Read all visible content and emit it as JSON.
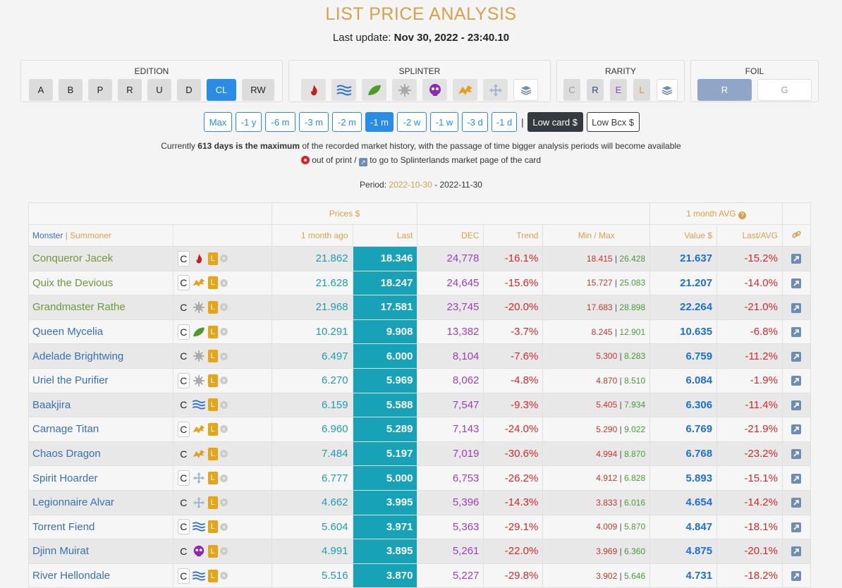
{
  "header": {
    "title": "LIST PRICE ANALYSIS",
    "update_label": "Last update:",
    "update_value": "Nov 30, 2022 - 23:40.10"
  },
  "filters": {
    "edition": {
      "label": "EDITION",
      "options": [
        "A",
        "B",
        "P",
        "R",
        "U",
        "D",
        "CL",
        "RW"
      ],
      "active": "CL"
    },
    "splinter": {
      "label": "SPLINTER",
      "icons": [
        "fire-icon",
        "water-icon",
        "earth-icon",
        "life-icon",
        "death-icon",
        "dragon-icon",
        "neutral-icon",
        "all-icon"
      ]
    },
    "rarity": {
      "label": "RARITY",
      "options": [
        "C",
        "R",
        "E",
        "L"
      ]
    },
    "foil": {
      "label": "FOIL",
      "options": [
        "R",
        "G"
      ],
      "active": "R"
    }
  },
  "periods": {
    "options": [
      "Max",
      "-1 y",
      "-6 m",
      "-3 m",
      "-2 m",
      "-1 m",
      "-2 w",
      "-1 w",
      "-3 d",
      "-1 d"
    ],
    "active": "-1 m",
    "low_card": "Low card $",
    "low_bcx": "Low Bcx $"
  },
  "info": {
    "line1_pre": "Currently ",
    "line1_bold": "613 days is the maximum",
    "line1_post": " of the recorded market history, with the passage of time bigger analysis periods will become available",
    "line2_a": " out of print / ",
    "line2_b": " to go to Splinterlands market page of the card",
    "period_label": "Period: ",
    "period_from": "2022-10-30",
    "period_sep": " - ",
    "period_to": "2022-11-30"
  },
  "table": {
    "group_prices": "Prices $",
    "group_avg": "1 month AVG",
    "col_monster": "Monster",
    "col_sep": "|",
    "col_summoner": "Summoner",
    "col_1m": "1 month ago",
    "col_last": "Last",
    "col_dec": "DEC",
    "col_trend": "Trend",
    "col_minmax": "Min / Max",
    "col_value": "Value $",
    "col_lastavg": "Last/AVG",
    "rows": [
      {
        "name": "Conqueror Jacek",
        "type": "green",
        "boxed": true,
        "el": "fire",
        "m1": "21.862",
        "last": "18.346",
        "dec": "24,778",
        "trend": "-16.1%",
        "min": "18.415",
        "max": "26.428",
        "val": "21.637",
        "la": "-15.2%"
      },
      {
        "name": "Quix the Devious",
        "type": "green",
        "boxed": true,
        "el": "dragon",
        "m1": "21.628",
        "last": "18.247",
        "dec": "24,645",
        "trend": "-15.6%",
        "min": "15.727",
        "max": "25.083",
        "val": "21.207",
        "la": "-14.0%"
      },
      {
        "name": "Grandmaster Rathe",
        "type": "green",
        "boxed": false,
        "el": "life",
        "m1": "21.968",
        "last": "17.581",
        "dec": "23,745",
        "trend": "-20.0%",
        "min": "17.683",
        "max": "28.898",
        "val": "22.264",
        "la": "-21.0%"
      },
      {
        "name": "Queen Mycelia",
        "type": "blue",
        "boxed": true,
        "el": "earth",
        "m1": "10.291",
        "last": "9.908",
        "dec": "13,382",
        "trend": "-3.7%",
        "min": "8.245",
        "max": "12.901",
        "val": "10.635",
        "la": "-6.8%"
      },
      {
        "name": "Adelade Brightwing",
        "type": "blue",
        "boxed": false,
        "el": "life",
        "m1": "6.497",
        "last": "6.000",
        "dec": "8,104",
        "trend": "-7.6%",
        "min": "5.300",
        "max": "8.283",
        "val": "6.759",
        "la": "-11.2%"
      },
      {
        "name": "Uriel the Purifier",
        "type": "blue",
        "boxed": true,
        "el": "life",
        "m1": "6.270",
        "last": "5.969",
        "dec": "8,062",
        "trend": "-4.8%",
        "min": "4.870",
        "max": "8.510",
        "val": "6.084",
        "la": "-1.9%"
      },
      {
        "name": "Baakjira",
        "type": "blue",
        "boxed": false,
        "el": "water",
        "m1": "6.159",
        "last": "5.588",
        "dec": "7,547",
        "trend": "-9.3%",
        "min": "5.405",
        "max": "7.934",
        "val": "6.306",
        "la": "-11.4%"
      },
      {
        "name": "Carnage Titan",
        "type": "blue",
        "boxed": true,
        "el": "dragon",
        "m1": "6.960",
        "last": "5.289",
        "dec": "7,143",
        "trend": "-24.0%",
        "min": "5.290",
        "max": "9.022",
        "val": "6.769",
        "la": "-21.9%"
      },
      {
        "name": "Chaos Dragon",
        "type": "blue",
        "boxed": false,
        "el": "dragon",
        "m1": "7.484",
        "last": "5.197",
        "dec": "7,019",
        "trend": "-30.6%",
        "min": "4.994",
        "max": "8.870",
        "val": "6.768",
        "la": "-23.2%"
      },
      {
        "name": "Spirit Hoarder",
        "type": "blue",
        "boxed": true,
        "el": "neutral",
        "m1": "6.777",
        "last": "5.000",
        "dec": "6,753",
        "trend": "-26.2%",
        "min": "4.912",
        "max": "6.828",
        "val": "5.893",
        "la": "-15.1%"
      },
      {
        "name": "Legionnaire Alvar",
        "type": "blue",
        "boxed": false,
        "el": "neutral",
        "m1": "4.662",
        "last": "3.995",
        "dec": "5,396",
        "trend": "-14.3%",
        "min": "3.833",
        "max": "6.016",
        "val": "4.654",
        "la": "-14.2%"
      },
      {
        "name": "Torrent Fiend",
        "type": "blue",
        "boxed": true,
        "el": "water",
        "m1": "5.604",
        "last": "3.971",
        "dec": "5,363",
        "trend": "-29.1%",
        "min": "4.009",
        "max": "5.870",
        "val": "4.847",
        "la": "-18.1%"
      },
      {
        "name": "Djinn Muirat",
        "type": "blue",
        "boxed": false,
        "el": "death",
        "m1": "4.991",
        "last": "3.895",
        "dec": "5,261",
        "trend": "-22.0%",
        "min": "3.969",
        "max": "6.360",
        "val": "4.875",
        "la": "-20.1%"
      },
      {
        "name": "River Hellondale",
        "type": "blue",
        "boxed": true,
        "el": "water",
        "m1": "5.516",
        "last": "3.870",
        "dec": "5,227",
        "trend": "-29.8%",
        "min": "3.902",
        "max": "5.646",
        "val": "4.731",
        "la": "-18.2%"
      }
    ]
  },
  "row_rarity": "C",
  "row_tier": "L"
}
